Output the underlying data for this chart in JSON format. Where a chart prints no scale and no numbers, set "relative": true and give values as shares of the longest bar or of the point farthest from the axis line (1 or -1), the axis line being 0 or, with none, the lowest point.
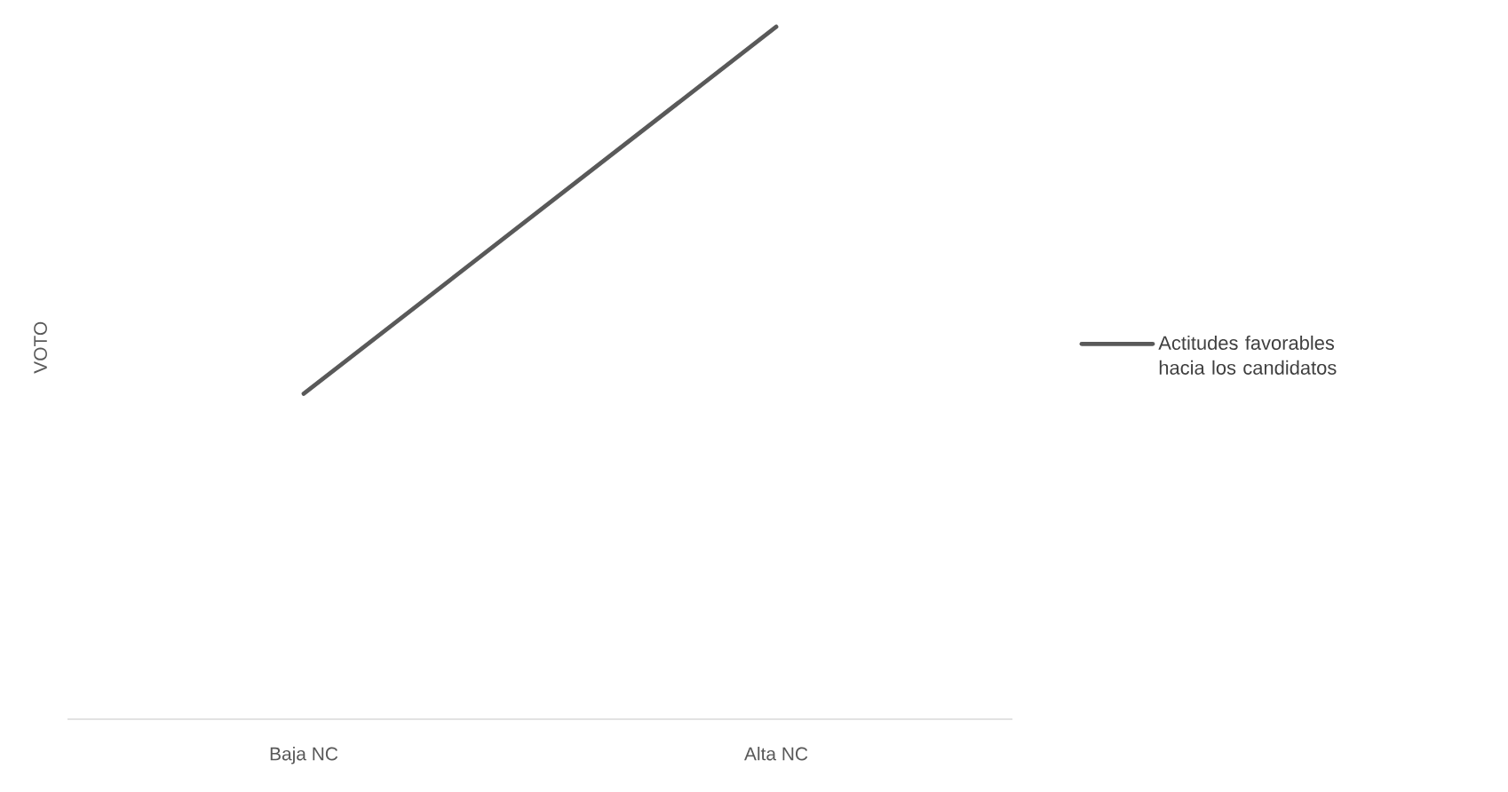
{
  "chart_data": {
    "type": "line",
    "ylabel": "VOTO",
    "categories": [
      "Baja NC",
      "Alta NC"
    ],
    "relative": true,
    "legend": "right",
    "marker": "none",
    "line_style": "solid",
    "series": [
      {
        "name": "Actitudes favorables hacia los candidatos",
        "color": "#595959",
        "values": [
          0.47,
          1
        ]
      }
    ]
  }
}
